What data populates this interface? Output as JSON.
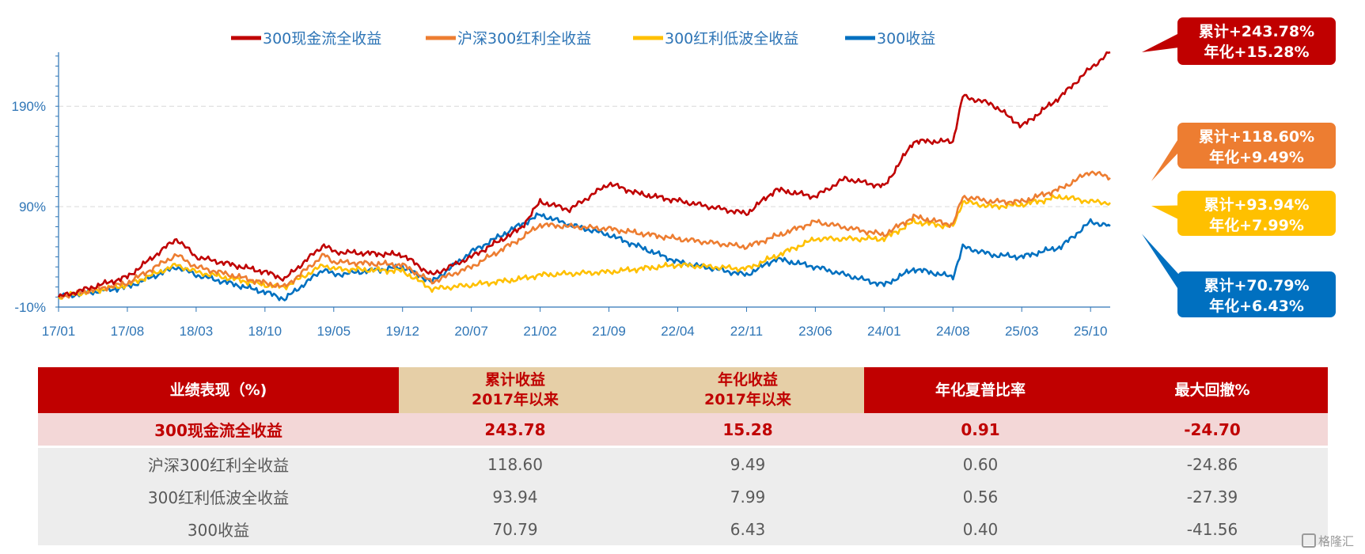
{
  "chart_data": {
    "type": "line",
    "x_start": "17/01",
    "x_end": "25/12",
    "x_ticks": [
      "17/01",
      "17/08",
      "18/03",
      "18/10",
      "19/05",
      "19/12",
      "20/07",
      "21/02",
      "21/09",
      "22/04",
      "22/11",
      "23/06",
      "24/01",
      "24/08",
      "25/03",
      "25/10"
    ],
    "y_ticks": [
      {
        "value": -10,
        "label": "-10%"
      },
      {
        "value": 90,
        "label": "90%"
      },
      {
        "value": 190,
        "label": "190%"
      }
    ],
    "ylim": [
      -10,
      243.78
    ],
    "grid": "horizontal dashed",
    "legend_position": "top",
    "series": [
      {
        "name": "300现金流全收益",
        "color": "#c00000",
        "callout": {
          "line1": "累计+243.78%",
          "line2": "年化+15.28%"
        },
        "points": [
          [
            "17/01",
            0
          ],
          [
            "17/08",
            20
          ],
          [
            "18/01",
            58
          ],
          [
            "18/03",
            40
          ],
          [
            "18/10",
            25
          ],
          [
            "18/12",
            18
          ],
          [
            "19/04",
            52
          ],
          [
            "19/05",
            45
          ],
          [
            "19/12",
            42
          ],
          [
            "20/03",
            22
          ],
          [
            "20/07",
            40
          ],
          [
            "20/12",
            68
          ],
          [
            "21/02",
            95
          ],
          [
            "21/05",
            87
          ],
          [
            "21/09",
            113
          ],
          [
            "21/12",
            103
          ],
          [
            "22/04",
            96
          ],
          [
            "22/11",
            83
          ],
          [
            "23/02",
            107
          ],
          [
            "23/06",
            100
          ],
          [
            "23/09",
            118
          ],
          [
            "24/01",
            110
          ],
          [
            "24/04",
            155
          ],
          [
            "24/08",
            155
          ],
          [
            "24/09",
            200
          ],
          [
            "24/12",
            192
          ],
          [
            "25/03",
            170
          ],
          [
            "25/07",
            200
          ],
          [
            "25/10",
            228
          ],
          [
            "25/12",
            243.78
          ]
        ]
      },
      {
        "name": "沪深300红利全收益",
        "color": "#ed7d31",
        "callout": {
          "line1": "累计+118.60%",
          "line2": "年化+9.49%"
        },
        "points": [
          [
            "17/01",
            0
          ],
          [
            "17/08",
            14
          ],
          [
            "18/01",
            42
          ],
          [
            "18/03",
            30
          ],
          [
            "18/10",
            14
          ],
          [
            "18/12",
            10
          ],
          [
            "19/04",
            42
          ],
          [
            "19/05",
            35
          ],
          [
            "19/12",
            32
          ],
          [
            "20/03",
            15
          ],
          [
            "20/07",
            30
          ],
          [
            "20/12",
            58
          ],
          [
            "21/02",
            72
          ],
          [
            "21/09",
            68
          ],
          [
            "22/04",
            58
          ],
          [
            "22/11",
            50
          ],
          [
            "23/06",
            75
          ],
          [
            "24/01",
            62
          ],
          [
            "24/04",
            80
          ],
          [
            "24/08",
            72
          ],
          [
            "24/09",
            100
          ],
          [
            "24/12",
            95
          ],
          [
            "25/03",
            95
          ],
          [
            "25/07",
            108
          ],
          [
            "25/10",
            125
          ],
          [
            "25/12",
            118.6
          ]
        ]
      },
      {
        "name": "300红利低波全收益",
        "color": "#ffc000",
        "callout": {
          "line1": "累计+93.94%",
          "line2": "年化+7.99%"
        },
        "points": [
          [
            "17/01",
            0
          ],
          [
            "17/08",
            12
          ],
          [
            "18/01",
            32
          ],
          [
            "18/03",
            25
          ],
          [
            "18/10",
            12
          ],
          [
            "18/12",
            10
          ],
          [
            "19/04",
            32
          ],
          [
            "19/05",
            28
          ],
          [
            "19/12",
            26
          ],
          [
            "20/03",
            8
          ],
          [
            "20/07",
            12
          ],
          [
            "20/12",
            18
          ],
          [
            "21/02",
            22
          ],
          [
            "21/09",
            25
          ],
          [
            "22/04",
            32
          ],
          [
            "22/11",
            28
          ],
          [
            "23/06",
            58
          ],
          [
            "24/01",
            58
          ],
          [
            "24/04",
            75
          ],
          [
            "24/08",
            70
          ],
          [
            "24/09",
            95
          ],
          [
            "24/12",
            90
          ],
          [
            "25/03",
            92
          ],
          [
            "25/07",
            100
          ],
          [
            "25/10",
            95
          ],
          [
            "25/12",
            93.94
          ]
        ]
      },
      {
        "name": "300收益",
        "color": "#0070c0",
        "callout": {
          "line1": "累计+70.79%",
          "line2": "年化+6.43%"
        },
        "points": [
          [
            "17/01",
            0
          ],
          [
            "17/08",
            10
          ],
          [
            "18/01",
            30
          ],
          [
            "18/03",
            22
          ],
          [
            "18/10",
            5
          ],
          [
            "18/12",
            -2
          ],
          [
            "19/04",
            28
          ],
          [
            "19/05",
            22
          ],
          [
            "19/12",
            30
          ],
          [
            "20/03",
            15
          ],
          [
            "20/07",
            45
          ],
          [
            "20/12",
            72
          ],
          [
            "21/02",
            82
          ],
          [
            "21/05",
            72
          ],
          [
            "21/09",
            62
          ],
          [
            "22/04",
            35
          ],
          [
            "22/11",
            22
          ],
          [
            "23/02",
            38
          ],
          [
            "23/06",
            30
          ],
          [
            "24/01",
            12
          ],
          [
            "24/04",
            28
          ],
          [
            "24/08",
            20
          ],
          [
            "24/09",
            50
          ],
          [
            "24/12",
            42
          ],
          [
            "25/03",
            40
          ],
          [
            "25/07",
            50
          ],
          [
            "25/10",
            75
          ],
          [
            "25/12",
            70.79
          ]
        ]
      }
    ]
  },
  "table": {
    "headers": [
      {
        "line1": "业绩表现（%)",
        "line2": ""
      },
      {
        "line1": "累计收益",
        "line2": "2017年以来"
      },
      {
        "line1": "年化收益",
        "line2": "2017年以来"
      },
      {
        "line1": "年化夏普比率",
        "line2": ""
      },
      {
        "line1": "最大回撤%",
        "line2": ""
      }
    ],
    "rows": [
      [
        "300现金流全收益",
        "243.78",
        "15.28",
        "0.91",
        "-24.70"
      ],
      [
        "沪深300红利全收益",
        "118.60",
        "9.49",
        "0.60",
        "-24.86"
      ],
      [
        "300红利低波全收益",
        "93.94",
        "7.99",
        "0.56",
        "-27.39"
      ],
      [
        "300收益",
        "70.79",
        "6.43",
        "0.40",
        "-41.56"
      ]
    ]
  },
  "watermark": {
    "text": "格隆汇",
    "icon": "glh-logo-icon"
  }
}
